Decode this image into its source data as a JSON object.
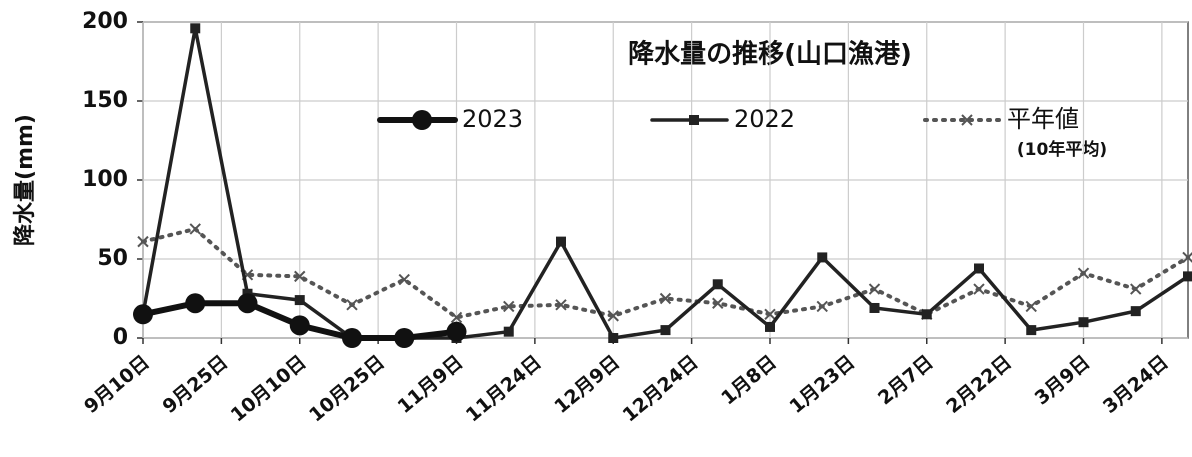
{
  "chart_data": {
    "type": "line",
    "title": "降水量の推移(山口漁港)",
    "y_label": "降水量(mm)",
    "legend_note": "(10年平均)",
    "x": [
      0,
      10,
      20,
      30,
      40,
      50,
      60,
      70,
      80,
      90,
      100,
      110,
      120,
      130,
      140,
      150,
      160,
      170,
      180,
      190,
      200
    ],
    "xlim": [
      0,
      200
    ],
    "xticks": [
      {
        "value": 0,
        "label": "9月10日"
      },
      {
        "value": 15,
        "label": "9月25日"
      },
      {
        "value": 30,
        "label": "10月10日"
      },
      {
        "value": 45,
        "label": "10月25日"
      },
      {
        "value": 60,
        "label": "11月9日"
      },
      {
        "value": 75,
        "label": "11月24日"
      },
      {
        "value": 90,
        "label": "12月9日"
      },
      {
        "value": 105,
        "label": "12月24日"
      },
      {
        "value": 120,
        "label": "1月8日"
      },
      {
        "value": 135,
        "label": "1月23日"
      },
      {
        "value": 150,
        "label": "2月7日"
      },
      {
        "value": 165,
        "label": "2月22日"
      },
      {
        "value": 180,
        "label": "3月9日"
      },
      {
        "value": 195,
        "label": "3月24日"
      }
    ],
    "ylim": [
      0,
      200
    ],
    "yticks": [
      0,
      50,
      100,
      150,
      200
    ],
    "grid": true,
    "series": [
      {
        "name": "2023",
        "color": "#111111",
        "marker": "circle",
        "line_style": "solid",
        "values": [
          15,
          22,
          22,
          8,
          0,
          0,
          4,
          null,
          null,
          null,
          null,
          null,
          null,
          null,
          null,
          null,
          null,
          null,
          null,
          null,
          null
        ]
      },
      {
        "name": "2022",
        "color": "#222222",
        "marker": "square",
        "line_style": "solid",
        "values": [
          15,
          196,
          28,
          24,
          0,
          0,
          0,
          4,
          61,
          0,
          5,
          34,
          7,
          51,
          19,
          15,
          44,
          5,
          10,
          17,
          39
        ]
      },
      {
        "name": "平年値",
        "color": "#555555",
        "marker": "x",
        "line_style": "dotted",
        "values": [
          61,
          69,
          40,
          39,
          21,
          37,
          13,
          20,
          21,
          14,
          25,
          22,
          15,
          20,
          31,
          15,
          31,
          20,
          41,
          31,
          51
        ]
      }
    ]
  }
}
